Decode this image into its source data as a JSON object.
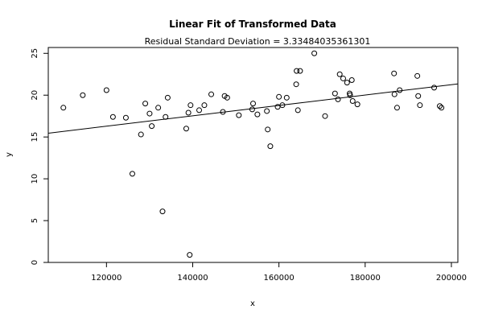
{
  "chart_data": {
    "type": "scatter",
    "title": "Linear Fit of Transformed Data",
    "subtitle": "Residual Standard Deviation =  3.33484035361301",
    "xlabel": "x",
    "ylabel": "y",
    "xlim": [
      106500,
      201500
    ],
    "ylim": [
      0,
      25.7
    ],
    "xticks": [
      120000,
      140000,
      160000,
      180000,
      200000
    ],
    "xtick_labels": [
      "120000",
      "140000",
      "160000",
      "180000",
      "200000"
    ],
    "yticks": [
      0,
      5,
      10,
      15,
      20,
      25
    ],
    "ytick_labels": [
      "0",
      "5",
      "10",
      "15",
      "20",
      "25"
    ],
    "grid": false,
    "fit_line": {
      "x": [
        106500,
        201500
      ],
      "y": [
        15.45,
        21.35
      ]
    },
    "points": [
      {
        "x": 110000,
        "y": 18.5
      },
      {
        "x": 114500,
        "y": 20.0
      },
      {
        "x": 120000,
        "y": 20.6
      },
      {
        "x": 121500,
        "y": 17.4
      },
      {
        "x": 124500,
        "y": 17.3
      },
      {
        "x": 126000,
        "y": 10.6
      },
      {
        "x": 128000,
        "y": 15.3
      },
      {
        "x": 129000,
        "y": 19.0
      },
      {
        "x": 130000,
        "y": 17.8
      },
      {
        "x": 130500,
        "y": 16.3
      },
      {
        "x": 132000,
        "y": 18.5
      },
      {
        "x": 133000,
        "y": 6.1
      },
      {
        "x": 133700,
        "y": 17.4
      },
      {
        "x": 134200,
        "y": 19.7
      },
      {
        "x": 138500,
        "y": 16.0
      },
      {
        "x": 139000,
        "y": 17.9
      },
      {
        "x": 139300,
        "y": 0.9
      },
      {
        "x": 139500,
        "y": 18.8
      },
      {
        "x": 141500,
        "y": 18.2
      },
      {
        "x": 142700,
        "y": 18.8
      },
      {
        "x": 144300,
        "y": 20.1
      },
      {
        "x": 147000,
        "y": 18.0
      },
      {
        "x": 147400,
        "y": 19.9
      },
      {
        "x": 148000,
        "y": 19.7
      },
      {
        "x": 150700,
        "y": 17.6
      },
      {
        "x": 153800,
        "y": 18.3
      },
      {
        "x": 154000,
        "y": 19.0
      },
      {
        "x": 155000,
        "y": 17.7
      },
      {
        "x": 157200,
        "y": 18.1
      },
      {
        "x": 157400,
        "y": 15.9
      },
      {
        "x": 158000,
        "y": 13.9
      },
      {
        "x": 159700,
        "y": 18.6
      },
      {
        "x": 160000,
        "y": 19.8
      },
      {
        "x": 160800,
        "y": 18.8
      },
      {
        "x": 161800,
        "y": 19.7
      },
      {
        "x": 164000,
        "y": 21.3
      },
      {
        "x": 164100,
        "y": 22.9
      },
      {
        "x": 164400,
        "y": 18.2
      },
      {
        "x": 164900,
        "y": 22.9
      },
      {
        "x": 168200,
        "y": 25.0
      },
      {
        "x": 170700,
        "y": 17.5
      },
      {
        "x": 173000,
        "y": 20.2
      },
      {
        "x": 173700,
        "y": 19.5
      },
      {
        "x": 174100,
        "y": 22.5
      },
      {
        "x": 174900,
        "y": 22.0
      },
      {
        "x": 175800,
        "y": 21.5
      },
      {
        "x": 176400,
        "y": 20.2
      },
      {
        "x": 176500,
        "y": 20.0
      },
      {
        "x": 176900,
        "y": 21.8
      },
      {
        "x": 177100,
        "y": 19.3
      },
      {
        "x": 178200,
        "y": 18.9
      },
      {
        "x": 186700,
        "y": 22.6
      },
      {
        "x": 186800,
        "y": 20.1
      },
      {
        "x": 187400,
        "y": 18.5
      },
      {
        "x": 188000,
        "y": 20.6
      },
      {
        "x": 192100,
        "y": 22.3
      },
      {
        "x": 192300,
        "y": 19.9
      },
      {
        "x": 192700,
        "y": 18.8
      },
      {
        "x": 196000,
        "y": 20.9
      },
      {
        "x": 197300,
        "y": 18.7
      },
      {
        "x": 197700,
        "y": 18.5
      }
    ]
  }
}
